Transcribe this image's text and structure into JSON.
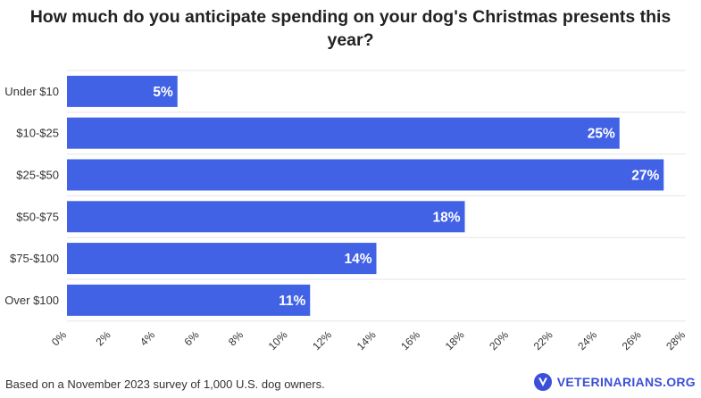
{
  "title": "How much do you anticipate spending on your dog's Christmas presents this year?",
  "footnote": "Based on a November 2023 survey of 1,000 U.S. dog owners.",
  "brand": {
    "name": "VETERINARIANS.ORG",
    "icon": "v-shield-logo-icon",
    "color": "#3b4fd8"
  },
  "colors": {
    "bar": "#4262e6",
    "grid": "#e6e6e6",
    "text": "#333333"
  },
  "chart_data": {
    "type": "bar",
    "orientation": "horizontal",
    "title": "How much do you anticipate spending on your dog's Christmas presents this year?",
    "categories": [
      "Under $10",
      "$10-$25",
      "$25-$50",
      "$50-$75",
      "$75-$100",
      "Over $100"
    ],
    "values": [
      5,
      25,
      27,
      18,
      14,
      11
    ],
    "data_labels": [
      "5%",
      "25%",
      "27%",
      "18%",
      "14%",
      "11%"
    ],
    "xlim": [
      0,
      28
    ],
    "xticks": [
      "0%",
      "2%",
      "4%",
      "6%",
      "8%",
      "10%",
      "12%",
      "14%",
      "16%",
      "18%",
      "20%",
      "22%",
      "24%",
      "26%",
      "28%"
    ],
    "tick_step": 2,
    "xlabel": "",
    "ylabel": "",
    "grid": true,
    "legend": "none"
  }
}
